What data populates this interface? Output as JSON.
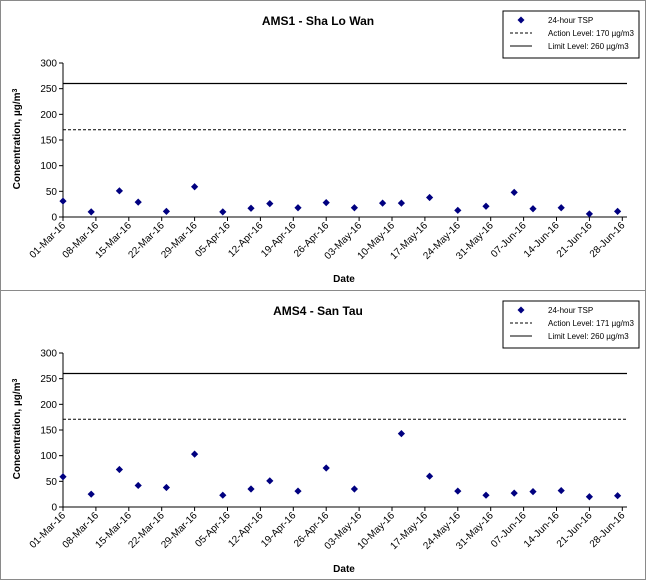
{
  "chart_data": [
    {
      "type": "scatter",
      "title": "AMS1 - Sha Lo Wan",
      "xlabel": "Date",
      "ylabel": "Concentration, µg/m³",
      "ylim": [
        0,
        300
      ],
      "yticks": [
        0,
        50,
        100,
        150,
        200,
        250,
        300
      ],
      "xticks": [
        "01-Mar-16",
        "08-Mar-16",
        "15-Mar-16",
        "22-Mar-16",
        "29-Mar-16",
        "05-Apr-16",
        "12-Apr-16",
        "19-Apr-16",
        "26-Apr-16",
        "03-May-16",
        "10-May-16",
        "17-May-16",
        "24-May-16",
        "31-May-16",
        "07-Jun-16",
        "14-Jun-16",
        "21-Jun-16",
        "28-Jun-16"
      ],
      "xlim": [
        "01-Mar-16",
        "29-Jun-16"
      ],
      "grid": false,
      "legend_position": "top-right",
      "legend": [
        "24-hour TSP",
        "Action Level: 170 µg/m3",
        "Limit Level: 260 µg/m3"
      ],
      "action_level": 170,
      "limit_level": 260,
      "series": [
        {
          "name": "24-hour TSP",
          "color": "#000080",
          "x": [
            "01-Mar-16",
            "07-Mar-16",
            "13-Mar-16",
            "17-Mar-16",
            "23-Mar-16",
            "29-Mar-16",
            "04-Apr-16",
            "10-Apr-16",
            "14-Apr-16",
            "20-Apr-16",
            "26-Apr-16",
            "02-May-16",
            "08-May-16",
            "12-May-16",
            "18-May-16",
            "24-May-16",
            "30-May-16",
            "05-Jun-16",
            "09-Jun-16",
            "15-Jun-16",
            "21-Jun-16",
            "27-Jun-16"
          ],
          "y": [
            31,
            10,
            51,
            29,
            11,
            59,
            10,
            17,
            26,
            18,
            28,
            18,
            27,
            27,
            38,
            13,
            21,
            48,
            16,
            18,
            6,
            11
          ]
        }
      ]
    },
    {
      "type": "scatter",
      "title": "AMS4 - San Tau",
      "xlabel": "Date",
      "ylabel": "Concentration, µg/m³",
      "ylim": [
        0,
        300
      ],
      "yticks": [
        0,
        50,
        100,
        150,
        200,
        250,
        300
      ],
      "xticks": [
        "01-Mar-16",
        "08-Mar-16",
        "15-Mar-16",
        "22-Mar-16",
        "29-Mar-16",
        "05-Apr-16",
        "12-Apr-16",
        "19-Apr-16",
        "26-Apr-16",
        "03-May-16",
        "10-May-16",
        "17-May-16",
        "24-May-16",
        "31-May-16",
        "07-Jun-16",
        "14-Jun-16",
        "21-Jun-16",
        "28-Jun-16"
      ],
      "xlim": [
        "01-Mar-16",
        "29-Jun-16"
      ],
      "grid": false,
      "legend_position": "top-right",
      "legend": [
        "24-hour TSP",
        "Action Level: 171 µg/m3",
        "Limit Level: 260 µg/m3"
      ],
      "action_level": 171,
      "limit_level": 260,
      "series": [
        {
          "name": "24-hour TSP",
          "color": "#000080",
          "x": [
            "01-Mar-16",
            "07-Mar-16",
            "13-Mar-16",
            "17-Mar-16",
            "23-Mar-16",
            "29-Mar-16",
            "04-Apr-16",
            "10-Apr-16",
            "14-Apr-16",
            "20-Apr-16",
            "26-Apr-16",
            "02-May-16",
            "12-May-16",
            "18-May-16",
            "24-May-16",
            "30-May-16",
            "05-Jun-16",
            "09-Jun-16",
            "15-Jun-16",
            "21-Jun-16",
            "27-Jun-16"
          ],
          "y": [
            59,
            25,
            73,
            42,
            38,
            103,
            23,
            35,
            51,
            31,
            76,
            35,
            143,
            60,
            31,
            23,
            27,
            30,
            32,
            20,
            22
          ]
        }
      ]
    }
  ]
}
